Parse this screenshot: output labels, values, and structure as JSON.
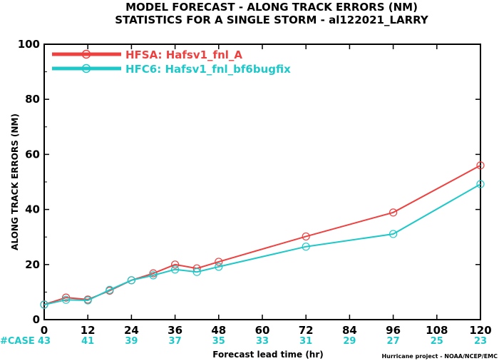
{
  "chart_data": {
    "type": "line",
    "title": "MODEL FORECAST - ALONG TRACK ERRORS (NM)",
    "subtitle": "STATISTICS FOR A SINGLE STORM - al122021_LARRY",
    "xlabel": "Forecast lead time (hr)",
    "ylabel": "ALONG TRACK ERRORS (NM)",
    "xlim": [
      0,
      120
    ],
    "ylim": [
      0,
      100
    ],
    "x_ticks": [
      0,
      12,
      24,
      36,
      48,
      60,
      72,
      84,
      96,
      108,
      120
    ],
    "y_ticks": [
      0,
      20,
      40,
      60,
      80,
      100
    ],
    "grid": false,
    "legend_position": "top-left",
    "series": [
      {
        "name": "HFSA: Hafsv1_fnl_A",
        "color": "#ef4040",
        "x": [
          0,
          6,
          12,
          18,
          24,
          30,
          36,
          42,
          48,
          72,
          96,
          120
        ],
        "y": [
          5.5,
          8.0,
          7.3,
          10.5,
          14.3,
          16.8,
          20.0,
          18.6,
          21.0,
          30.2,
          38.9,
          56.0
        ]
      },
      {
        "name": "HFC6: Hafsv1_fnl_bf6bugfix",
        "color": "#1ec8c8",
        "x": [
          0,
          6,
          12,
          18,
          24,
          30,
          36,
          42,
          48,
          72,
          96,
          120
        ],
        "y": [
          5.4,
          7.2,
          7.0,
          10.8,
          14.3,
          16.1,
          18.2,
          17.3,
          19.2,
          26.5,
          31.1,
          49.2
        ]
      }
    ],
    "case_label": "#CASE",
    "case_counts": [
      43,
      41,
      39,
      37,
      35,
      33,
      31,
      29,
      27,
      25,
      23
    ],
    "credit": "Hurricane project - NOAA/NCEP/EMC"
  }
}
